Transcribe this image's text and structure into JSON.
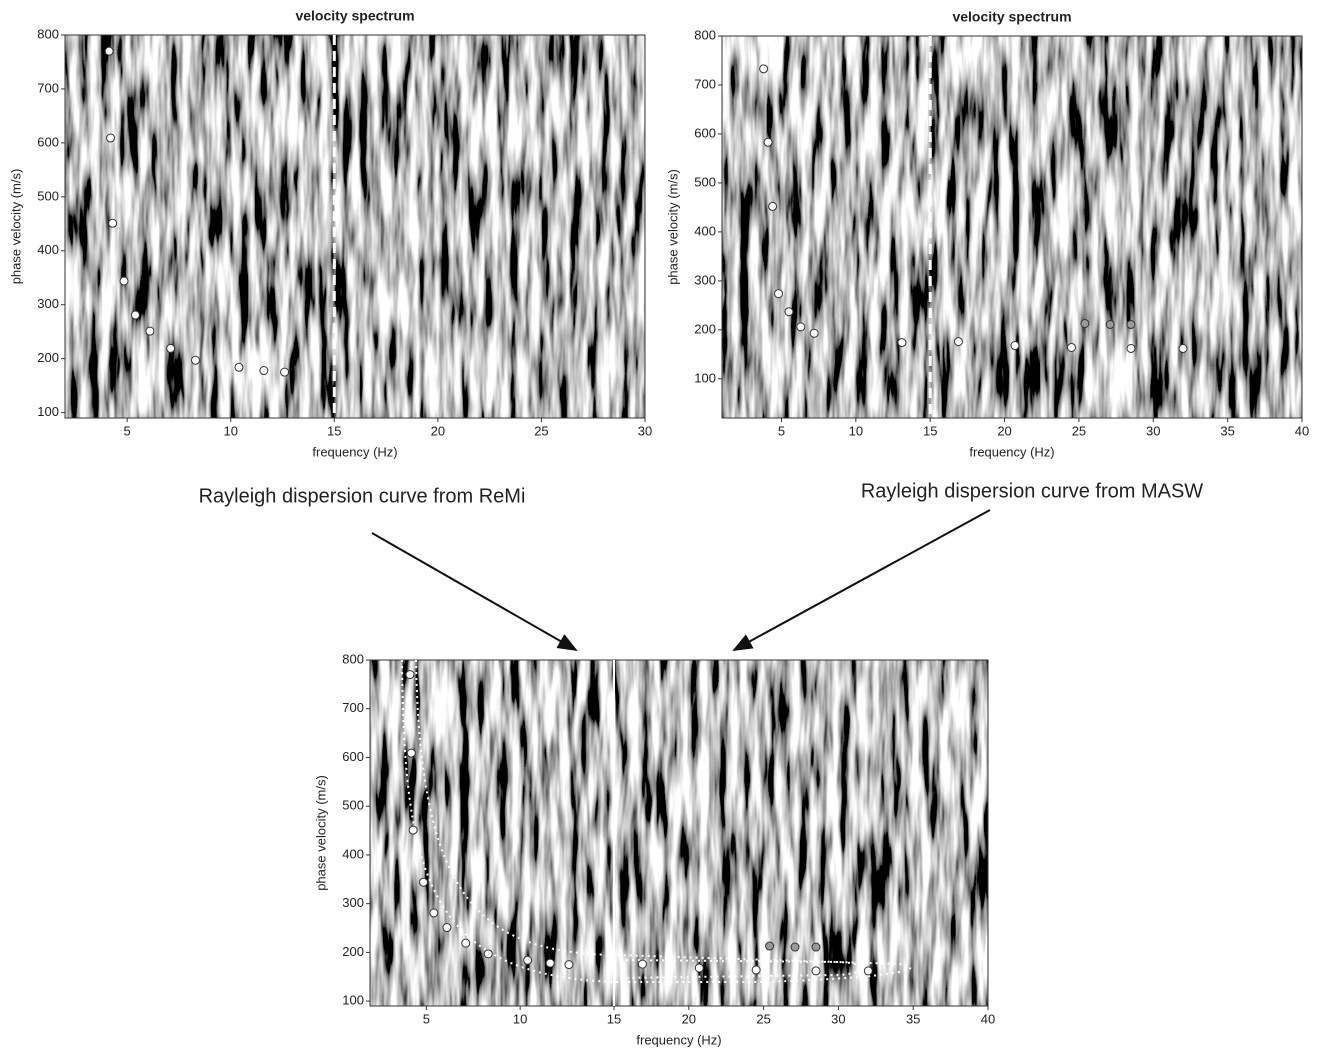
{
  "annotations": [
    "Rayleigh dispersion curve from ReMi",
    "Rayleigh dispersion curve from MASW"
  ],
  "chart_data": [
    {
      "type": "scatter",
      "title": "velocity spectrum",
      "xlabel": "frequency (Hz)",
      "ylabel": "phase velocity (m/s)",
      "xlim": [
        2,
        30
      ],
      "ylim": [
        90,
        800
      ],
      "xticks": [
        5,
        10,
        15,
        20,
        25,
        30
      ],
      "yticks": [
        100,
        200,
        300,
        400,
        500,
        600,
        700,
        800
      ],
      "vline": 15,
      "series": [
        {
          "color": "#ffffff",
          "x": [
            4.13,
            4.2,
            4.3,
            4.85,
            5.4,
            6.1,
            7.1,
            8.3,
            10.4,
            11.6,
            12.6
          ],
          "values": [
            770,
            609,
            451,
            344,
            281,
            251,
            219,
            197,
            184,
            178,
            175
          ]
        }
      ]
    },
    {
      "type": "scatter",
      "title": "velocity spectrum",
      "xlabel": "frequency (Hz)",
      "ylabel": "phase velocity (m/s)",
      "xlim": [
        1,
        40
      ],
      "ylim": [
        20,
        800
      ],
      "xticks": [
        5,
        10,
        15,
        20,
        25,
        30,
        35,
        40
      ],
      "yticks": [
        100,
        200,
        300,
        400,
        500,
        600,
        700,
        800
      ],
      "vline": 15,
      "series": [
        {
          "color": "#ffffff",
          "x": [
            3.8,
            4.1,
            4.4,
            4.8,
            5.5,
            6.3,
            7.2,
            13.1,
            16.9,
            20.7,
            24.5,
            28.5,
            32
          ],
          "values": [
            733,
            583,
            452,
            274,
            237,
            206,
            193,
            174,
            176,
            168,
            164,
            162,
            162
          ]
        },
        {
          "color": "#999999",
          "x": [
            25.4,
            27.1,
            28.5
          ],
          "values": [
            213,
            211,
            211
          ]
        }
      ]
    },
    {
      "type": "scatter",
      "xlabel": "frequency (Hz)",
      "ylabel": "phase velocity (m/s)",
      "ylim": [
        90,
        800
      ],
      "yticks": [
        100,
        200,
        300,
        400,
        500,
        600,
        700,
        800
      ],
      "panels": [
        {
          "xlim": [
            2,
            15
          ],
          "xticks": [
            5,
            10
          ]
        },
        {
          "xlim": [
            15,
            40
          ],
          "xticks": [
            15,
            20,
            25,
            30,
            35,
            40
          ]
        }
      ],
      "series": [
        {
          "color": "#ffffff",
          "panel": 0,
          "x": [
            4.13,
            4.2,
            4.3,
            4.85,
            5.4,
            6.1,
            7.1,
            8.3,
            10.4,
            11.6,
            12.6
          ],
          "values": [
            770,
            609,
            451,
            344,
            281,
            251,
            219,
            197,
            184,
            178,
            175
          ]
        },
        {
          "color": "#ffffff",
          "panel": 1,
          "x": [
            16.9,
            20.7,
            24.5,
            28.5,
            32
          ],
          "values": [
            176,
            168,
            164,
            162,
            162
          ]
        },
        {
          "color": "#999999",
          "panel": 1,
          "x": [
            25.4,
            27.1,
            28.5
          ],
          "values": [
            213,
            211,
            211
          ]
        }
      ]
    }
  ]
}
